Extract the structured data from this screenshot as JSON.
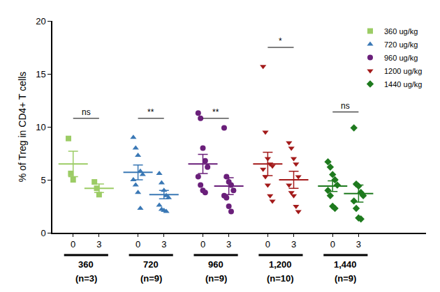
{
  "chart_data": {
    "type": "scatter",
    "y_label": "% of Treg in CD4+ T cells",
    "ylim": [
      0,
      20
    ],
    "yticks": [
      0,
      5,
      10,
      15,
      20
    ],
    "grid": false,
    "legend": "top right",
    "timepoints": [
      "0",
      "3"
    ],
    "series": [
      {
        "name": "360 ug/kg",
        "group_label": "360",
        "n_label": "(n=3)",
        "color": "#9ccc65",
        "marker": "square",
        "values": [
          [
            8.9,
            5.6,
            5.0
          ],
          [
            4.8,
            4.2,
            3.6
          ]
        ],
        "mean": [
          6.5,
          4.2
        ],
        "sem": [
          1.2,
          0.4
        ],
        "significance": "ns",
        "significance_y": 10.8
      },
      {
        "name": "720 ug/kg",
        "group_label": "720",
        "n_label": "(n=9)",
        "color": "#3a78b5",
        "marker": "triangle-up",
        "values": [
          [
            9.0,
            8.0,
            7.3,
            5.8,
            5.5,
            5.0,
            4.5,
            3.8,
            2.3
          ],
          [
            5.6,
            4.7,
            4.0,
            3.5,
            3.3,
            2.6,
            2.2,
            2.1,
            2.0
          ]
        ],
        "mean": [
          5.7,
          3.6
        ],
        "sem": [
          0.7,
          0.4
        ],
        "significance": "**",
        "significance_y": 10.8
      },
      {
        "name": "960 ug/kg",
        "group_label": "960",
        "n_label": "(n=9)",
        "color": "#6a1f7a",
        "marker": "circle",
        "values": [
          [
            11.3,
            10.8,
            8.0,
            6.8,
            6.2,
            5.3,
            4.5,
            4.0,
            3.8
          ],
          [
            9.9,
            5.3,
            4.8,
            4.5,
            4.0,
            3.5,
            3.3,
            2.5,
            2.0
          ]
        ],
        "mean": [
          6.5,
          4.4
        ],
        "sem": [
          0.9,
          0.8
        ],
        "significance": "**",
        "significance_y": 10.8
      },
      {
        "name": "1200 ug/kg",
        "group_label": "1,200",
        "n_label": "(n=10)",
        "color": "#a31a1a",
        "marker": "triangle-down",
        "values": [
          [
            15.7,
            9.5,
            7.0,
            6.5,
            6.3,
            6.0,
            5.3,
            4.5,
            3.5,
            3.0
          ],
          [
            8.5,
            8.0,
            7.0,
            6.5,
            5.3,
            4.5,
            3.8,
            3.5,
            2.5,
            2.0
          ]
        ],
        "mean": [
          6.5,
          5.0
        ],
        "sem": [
          1.1,
          0.8
        ],
        "significance": "*",
        "significance_y": 17.5
      },
      {
        "name": "1440 ug/kg",
        "group_label": "1,440",
        "n_label": "(n=9)",
        "color": "#1e7a1e",
        "marker": "diamond",
        "values": [
          [
            6.7,
            6.2,
            5.5,
            5.0,
            4.5,
            4.0,
            3.5,
            2.5,
            2.3
          ],
          [
            9.9,
            4.6,
            4.4,
            3.8,
            3.5,
            3.0,
            2.3,
            1.4,
            1.3
          ]
        ],
        "mean": [
          4.4,
          3.7
        ],
        "sem": [
          0.5,
          0.8
        ],
        "significance": "ns",
        "significance_y": 11.4
      }
    ]
  }
}
